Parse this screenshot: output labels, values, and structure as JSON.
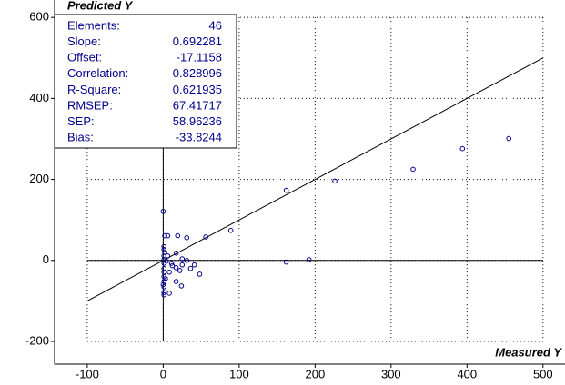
{
  "chart_data": {
    "type": "scatter",
    "y_label": "Predicted Y",
    "x_label": "Measured Y",
    "xlim": [
      -143,
      529
    ],
    "ylim": [
      -256,
      643
    ],
    "xticks": [
      -100,
      0,
      100,
      200,
      300,
      400,
      500
    ],
    "yticks": [
      -200,
      0,
      200,
      400,
      600
    ],
    "grid": true,
    "color": "#00008b",
    "identity_line": {
      "x": [
        -100,
        500
      ],
      "y": [
        -100,
        500
      ]
    },
    "x": [
      0,
      2,
      6,
      1,
      1,
      1,
      1,
      1,
      1,
      1,
      1,
      1,
      1,
      1,
      1,
      19,
      31,
      56,
      89,
      162,
      226,
      329,
      394,
      455,
      162,
      192,
      17,
      25,
      31,
      12,
      17,
      25,
      22,
      36,
      41,
      48,
      24,
      17,
      8,
      8,
      11,
      6,
      2,
      4,
      3,
      0
    ],
    "y": [
      121,
      61,
      61,
      34,
      27,
      11,
      2,
      -7,
      -20,
      -29,
      -40,
      -52,
      -65,
      -79,
      -85,
      61,
      56,
      58,
      74,
      173,
      196,
      225,
      276,
      301,
      -4,
      2,
      18,
      4,
      0,
      -13,
      -18,
      -11,
      -25,
      -20,
      -11,
      -34,
      -63,
      -52,
      -81,
      -29,
      -7,
      11,
      20,
      -2,
      -45,
      -60
    ],
    "stats": [
      {
        "label": "Elements:",
        "value": 46
      },
      {
        "label": "Slope:",
        "value": 0.692281
      },
      {
        "label": "Offset:",
        "value": -17.1158
      },
      {
        "label": "Correlation:",
        "value": 0.828996
      },
      {
        "label": "R-Square:",
        "value": 0.621935
      },
      {
        "label": "RMSEP:",
        "value": 67.41717
      },
      {
        "label": "SEP:",
        "value": 58.96236
      },
      {
        "label": "Bias:",
        "value": -33.8244
      }
    ]
  }
}
